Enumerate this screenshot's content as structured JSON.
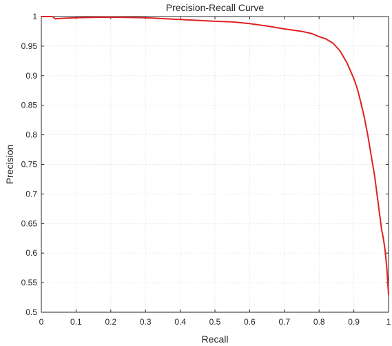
{
  "chart_data": {
    "type": "line",
    "title": "Precision-Recall Curve",
    "xlabel": "Recall",
    "ylabel": "Precision",
    "xlim": [
      0,
      1
    ],
    "ylim": [
      0.5,
      1
    ],
    "grid": true,
    "x_ticks": [
      "0",
      "0.1",
      "0.2",
      "0.3",
      "0.4",
      "0.5",
      "0.6",
      "0.7",
      "0.8",
      "0.9",
      "1"
    ],
    "y_ticks": [
      "0.5",
      "0.55",
      "0.6",
      "0.65",
      "0.7",
      "0.75",
      "0.8",
      "0.85",
      "0.9",
      "0.95",
      "1"
    ],
    "series": [
      {
        "color": "#e02020",
        "x": [
          0.0,
          0.03,
          0.035,
          0.04,
          0.06,
          0.1,
          0.2,
          0.3,
          0.4,
          0.5,
          0.55,
          0.6,
          0.65,
          0.7,
          0.75,
          0.78,
          0.8,
          0.82,
          0.84,
          0.86,
          0.88,
          0.9,
          0.91,
          0.92,
          0.93,
          0.94,
          0.95,
          0.96,
          0.97,
          0.98,
          0.985,
          0.99,
          0.995,
          1.0
        ],
        "y": [
          1.0,
          1.0,
          0.999,
          0.996,
          0.997,
          0.998,
          0.999,
          0.998,
          0.995,
          0.992,
          0.991,
          0.988,
          0.984,
          0.979,
          0.975,
          0.971,
          0.966,
          0.962,
          0.955,
          0.942,
          0.922,
          0.895,
          0.878,
          0.855,
          0.83,
          0.8,
          0.765,
          0.73,
          0.685,
          0.64,
          0.625,
          0.605,
          0.575,
          0.53
        ]
      }
    ]
  }
}
